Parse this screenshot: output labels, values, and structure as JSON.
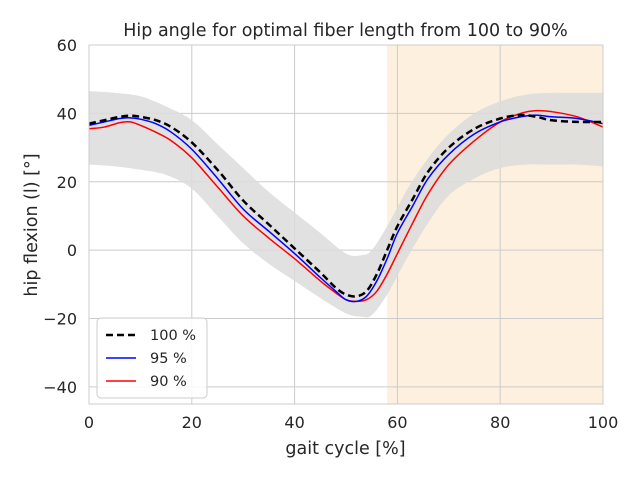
{
  "chart_data": {
    "type": "line",
    "title": "Hip angle for optimal fiber length from 100 to 90%",
    "xlabel": "gait cycle [%]",
    "ylabel": "hip flexion (l) [°]",
    "xlim": [
      0,
      100
    ],
    "ylim": [
      -45,
      60
    ],
    "xticks": [
      0,
      20,
      40,
      60,
      80,
      100
    ],
    "xtick_labels": [
      "0",
      "20",
      "40",
      "60",
      "80",
      "100"
    ],
    "yticks": [
      -40,
      -20,
      0,
      20,
      40,
      60
    ],
    "ytick_labels": [
      "−40",
      "−20",
      "0",
      "20",
      "40",
      "60"
    ],
    "grid": true,
    "legend_position": "lower-left",
    "shaded_region": {
      "x_start": 58,
      "x_end": 100,
      "color": "#fdf0df"
    },
    "band": {
      "color": "#dcdcdc",
      "x": [
        0,
        5,
        10,
        15,
        20,
        25,
        30,
        35,
        40,
        45,
        50,
        53,
        55,
        58,
        62,
        66,
        70,
        75,
        80,
        85,
        90,
        95,
        100
      ],
      "upper": [
        46.5,
        46,
        45,
        42,
        38,
        31,
        24,
        17,
        11,
        5,
        -1,
        -1.5,
        0,
        7,
        18,
        27,
        34,
        40,
        43.5,
        45.5,
        46,
        46,
        46
      ],
      "lower": [
        25,
        24.5,
        23.5,
        22,
        18,
        10,
        2,
        -4,
        -9,
        -14,
        -18.5,
        -19.5,
        -19,
        -13,
        -2,
        8,
        16,
        21,
        24,
        25,
        25,
        25,
        24.5
      ]
    },
    "x": [
      0,
      3,
      6,
      8,
      10,
      13,
      16,
      20,
      25,
      30,
      35,
      40,
      45,
      48,
      50,
      52,
      54,
      56,
      58,
      60,
      63,
      66,
      70,
      75,
      80,
      84,
      87,
      90,
      95,
      100
    ],
    "series": [
      {
        "name": "100 %",
        "color": "#000000",
        "style": "dashed",
        "values": [
          37,
          38,
          39,
          39.3,
          39,
          38,
          36,
          31.5,
          23.5,
          14.5,
          7.5,
          0.5,
          -6.5,
          -11,
          -13,
          -13.5,
          -12,
          -7,
          0,
          7,
          15,
          23,
          30,
          35.5,
          38.5,
          39.5,
          39,
          38,
          37.5,
          37.5
        ]
      },
      {
        "name": "95 %",
        "color": "#0000ff",
        "style": "solid",
        "values": [
          36.5,
          37.5,
          38.5,
          38.7,
          38.3,
          37,
          34.5,
          29.5,
          21,
          12,
          5.5,
          -1,
          -8,
          -12,
          -14.5,
          -15,
          -13.5,
          -9,
          -2.5,
          5,
          13,
          21,
          28,
          34,
          37.5,
          39,
          39.5,
          39,
          38.5,
          37
        ]
      },
      {
        "name": "90 %",
        "color": "#ff0000",
        "style": "solid",
        "values": [
          35.5,
          36,
          37.3,
          37.5,
          36.5,
          34.5,
          32,
          27,
          18.5,
          10,
          3.5,
          -2.5,
          -9,
          -12.5,
          -14.5,
          -15,
          -14.5,
          -12,
          -7,
          -1,
          8,
          16.5,
          25,
          32,
          37.5,
          40,
          40.8,
          40.5,
          39,
          36
        ]
      }
    ]
  }
}
